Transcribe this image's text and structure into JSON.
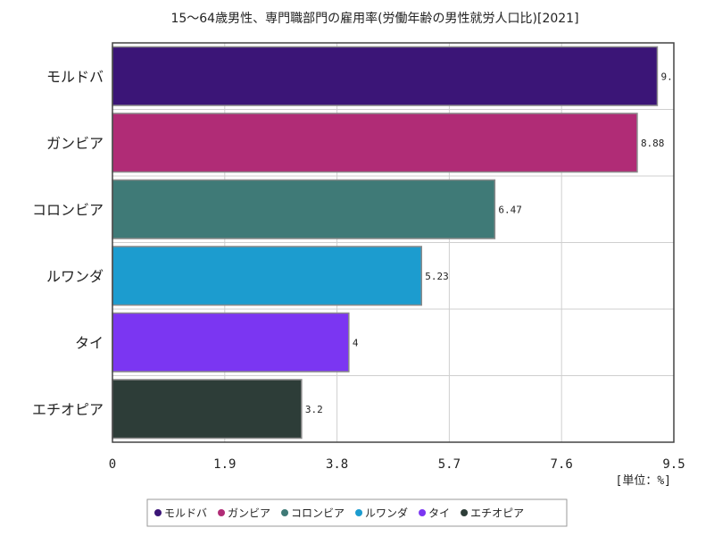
{
  "chart_data": {
    "type": "bar",
    "orientation": "horizontal",
    "title": "15〜64歳男性、専門職部門の雇用率(労働年齢の男性就労人口比)[2021]",
    "unit_label": "[単位：%]",
    "categories": [
      "モルドバ",
      "ガンビア",
      "コロンビア",
      "ルワンダ",
      "タイ",
      "エチオピア"
    ],
    "values": [
      9.22,
      8.88,
      6.47,
      5.23,
      4,
      3.2
    ],
    "data_labels": [
      "9.",
      "8.88",
      "6.47",
      "5.23",
      "4",
      "3.2"
    ],
    "colors": [
      "#3b1577",
      "#b02c76",
      "#3f7a77",
      "#1c9ccf",
      "#7b36f2",
      "#2d3d38"
    ],
    "xlim": [
      0,
      9.5
    ],
    "xticks": [
      0,
      1.9,
      3.8,
      5.7,
      7.6,
      9.5
    ],
    "xtick_labels": [
      "0",
      "1.9",
      "3.8",
      "5.7",
      "7.6",
      "9.5"
    ],
    "grid": true,
    "legend": {
      "placement": "bottom",
      "entries": [
        "モルドバ",
        "ガンビア",
        "コロンビア",
        "ルワンダ",
        "タイ",
        "エチオピア"
      ]
    }
  }
}
